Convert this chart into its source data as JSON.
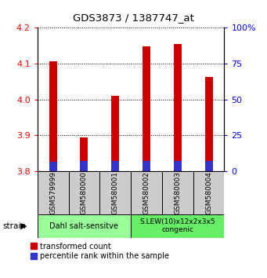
{
  "title": "GDS3873 / 1387747_at",
  "samples": [
    "GSM579999",
    "GSM580000",
    "GSM580001",
    "GSM580002",
    "GSM580003",
    "GSM580004"
  ],
  "red_values": [
    4.107,
    3.893,
    4.01,
    4.148,
    4.155,
    4.063
  ],
  "blue_values": [
    3.825,
    3.827,
    3.828,
    3.828,
    3.827,
    3.827
  ],
  "red_base": 3.8,
  "blue_base": 3.8,
  "ylim": [
    3.8,
    4.2
  ],
  "y_ticks": [
    3.8,
    3.9,
    4.0,
    4.1,
    4.2
  ],
  "right_ylim": [
    0,
    100
  ],
  "right_ticks": [
    0,
    25,
    50,
    75,
    100
  ],
  "right_tick_labels": [
    "0",
    "25",
    "50",
    "75",
    "100%"
  ],
  "group1_label": "Dahl salt-sensitve",
  "group2_label": "S.LEW(10)x12x2x3x5\ncongenic",
  "group1_indices": [
    0,
    1,
    2
  ],
  "group2_indices": [
    3,
    4,
    5
  ],
  "legend1": "transformed count",
  "legend2": "percentile rank within the sample",
  "bar_color_red": "#cc0000",
  "bar_color_blue": "#3333cc",
  "group1_color": "#99ff99",
  "group2_color": "#66ee66",
  "label_bg_color": "#cccccc",
  "bar_width": 0.25
}
